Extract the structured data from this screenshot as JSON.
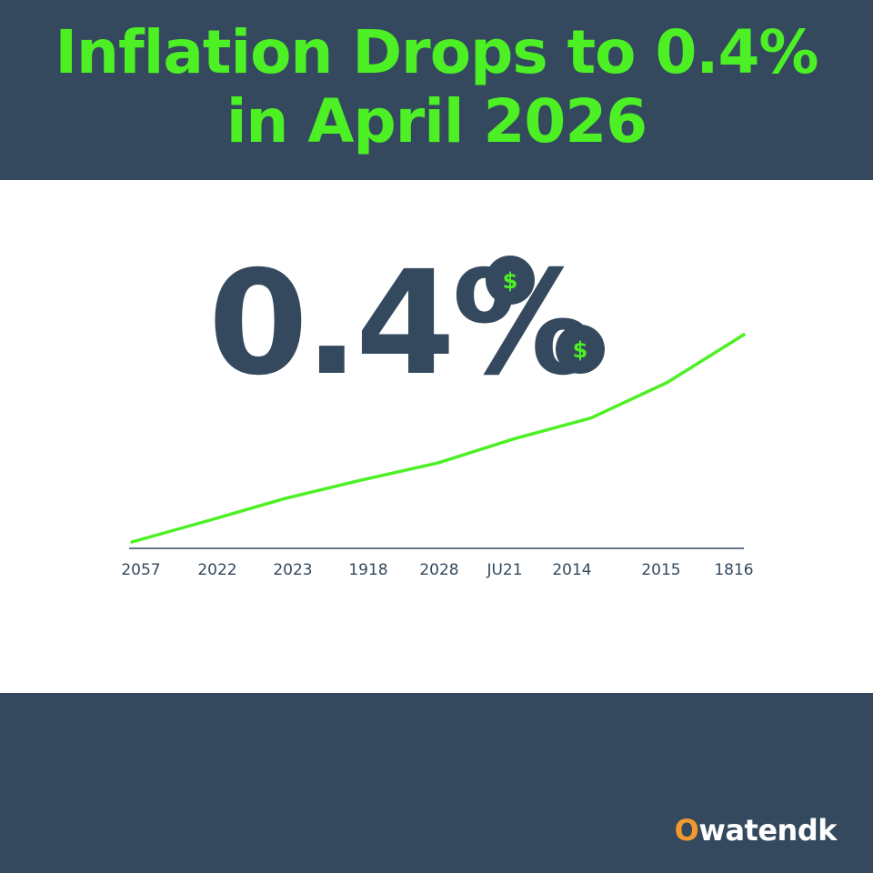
{
  "headline": "Inflation Drops to 0.4% in April 2026",
  "big_figure": "0.4%",
  "coin_symbol": "$",
  "brand": {
    "first_letter": "O",
    "rest": "watendk"
  },
  "colors": {
    "navy": "#34495e",
    "green": "#4cf024",
    "white": "#ffffff",
    "brand_orange": "#f2992e"
  },
  "chart_data": {
    "type": "line",
    "title": "",
    "xlabel": "",
    "ylabel": "",
    "categories": [
      "2057",
      "2022",
      "2023",
      "1918",
      "2028",
      "JU21",
      "2014",
      "2015",
      "1816"
    ],
    "series": [
      {
        "values": [
          0.0,
          3.0,
          6.1,
          8.7,
          11.1,
          14.5,
          17.4,
          22.4,
          29.1
        ]
      }
    ],
    "ylim": [
      0,
      30
    ],
    "grid": false,
    "legend": "none"
  }
}
